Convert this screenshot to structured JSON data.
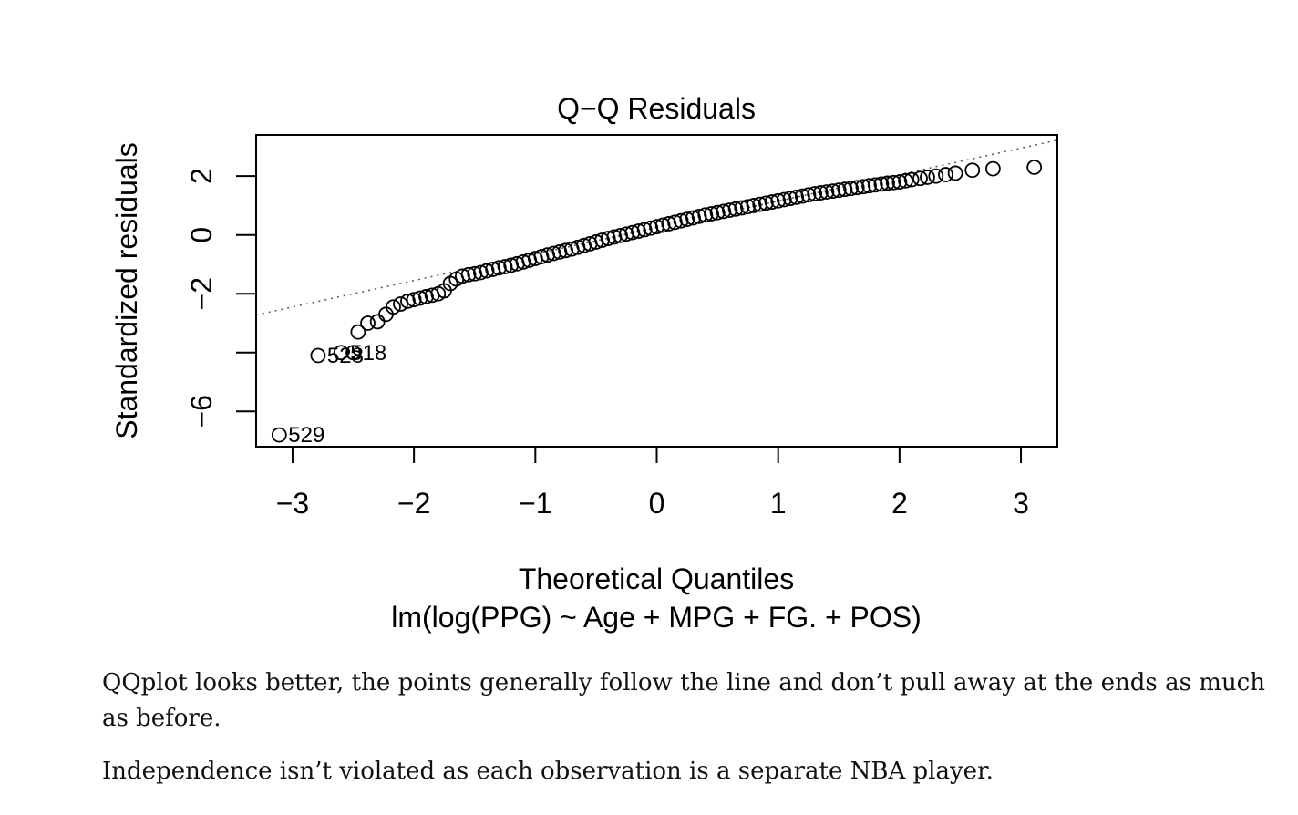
{
  "chart_data": {
    "type": "scatter",
    "title": "Q−Q Residuals",
    "xlabel": "Theoretical Quantiles",
    "subtitle": "lm(log(PPG) ~ Age + MPG + FG. + POS)",
    "ylabel": "Standardized residuals",
    "xlim": [
      -3.3,
      3.3
    ],
    "ylim": [
      -7.2,
      3.4
    ],
    "x_ticks": [
      -3,
      -2,
      -1,
      0,
      1,
      2,
      3
    ],
    "x_tick_labels": [
      "−3",
      "−2",
      "−1",
      "0",
      "1",
      "2",
      "3"
    ],
    "y_ticks": [
      -6,
      -4,
      -2,
      0,
      2
    ],
    "y_tick_labels": [
      "−6",
      "",
      "−2",
      "0",
      "2"
    ],
    "reference_line": {
      "intercept": 0.25,
      "slope": 0.9,
      "style": "dotted"
    },
    "grid": false,
    "labeled_points": [
      {
        "label": "529",
        "x": -3.11,
        "y": -6.8
      },
      {
        "label": "528",
        "x": -2.79,
        "y": -4.1
      },
      {
        "label": "518",
        "x": -2.6,
        "y": -4.0
      }
    ],
    "points": {
      "x": [
        -3.11,
        -2.79,
        -2.6,
        -2.5,
        -2.46,
        -2.38,
        -2.3,
        -2.23,
        -2.17,
        -2.11,
        -2.05,
        -2.0,
        -1.95,
        -1.9,
        -1.85,
        -1.8,
        -1.75,
        -1.7,
        -1.65,
        -1.6,
        -1.55,
        -1.5,
        -1.45,
        -1.4,
        -1.35,
        -1.3,
        -1.25,
        -1.2,
        -1.15,
        -1.1,
        -1.05,
        -1.0,
        -0.95,
        -0.9,
        -0.85,
        -0.8,
        -0.75,
        -0.7,
        -0.65,
        -0.6,
        -0.55,
        -0.5,
        -0.45,
        -0.4,
        -0.35,
        -0.3,
        -0.25,
        -0.2,
        -0.15,
        -0.1,
        -0.05,
        0.0,
        0.05,
        0.1,
        0.15,
        0.2,
        0.25,
        0.3,
        0.35,
        0.4,
        0.45,
        0.5,
        0.55,
        0.6,
        0.65,
        0.7,
        0.75,
        0.8,
        0.85,
        0.9,
        0.95,
        1.0,
        1.05,
        1.1,
        1.15,
        1.2,
        1.25,
        1.3,
        1.35,
        1.4,
        1.45,
        1.5,
        1.55,
        1.6,
        1.65,
        1.7,
        1.75,
        1.8,
        1.85,
        1.9,
        1.95,
        2.0,
        2.05,
        2.1,
        2.17,
        2.23,
        2.3,
        2.38,
        2.46,
        2.6,
        2.77,
        3.11
      ],
      "y": [
        -6.8,
        -4.1,
        -4.0,
        -4.0,
        -3.3,
        -3.0,
        -2.95,
        -2.7,
        -2.45,
        -2.35,
        -2.25,
        -2.2,
        -2.15,
        -2.1,
        -2.05,
        -2.0,
        -1.9,
        -1.65,
        -1.5,
        -1.4,
        -1.35,
        -1.32,
        -1.28,
        -1.22,
        -1.17,
        -1.12,
        -1.08,
        -1.03,
        -0.98,
        -0.92,
        -0.86,
        -0.8,
        -0.74,
        -0.68,
        -0.63,
        -0.58,
        -0.53,
        -0.48,
        -0.42,
        -0.36,
        -0.3,
        -0.24,
        -0.18,
        -0.12,
        -0.07,
        -0.02,
        0.03,
        0.08,
        0.13,
        0.18,
        0.23,
        0.28,
        0.33,
        0.38,
        0.43,
        0.48,
        0.53,
        0.58,
        0.63,
        0.68,
        0.72,
        0.76,
        0.8,
        0.84,
        0.88,
        0.92,
        0.96,
        1.0,
        1.04,
        1.08,
        1.12,
        1.16,
        1.2,
        1.24,
        1.28,
        1.32,
        1.36,
        1.4,
        1.43,
        1.46,
        1.49,
        1.52,
        1.55,
        1.58,
        1.61,
        1.64,
        1.67,
        1.7,
        1.73,
        1.76,
        1.78,
        1.8,
        1.84,
        1.88,
        1.92,
        1.96,
        2.0,
        2.05,
        2.1,
        2.2,
        2.25,
        2.3
      ]
    }
  },
  "text": {
    "paragraph_1": "QQplot looks better, the points generally follow the line and don’t pull away at the ends as much as before.",
    "paragraph_2": "Independence isn’t violated as each observation is a separate NBA player."
  }
}
